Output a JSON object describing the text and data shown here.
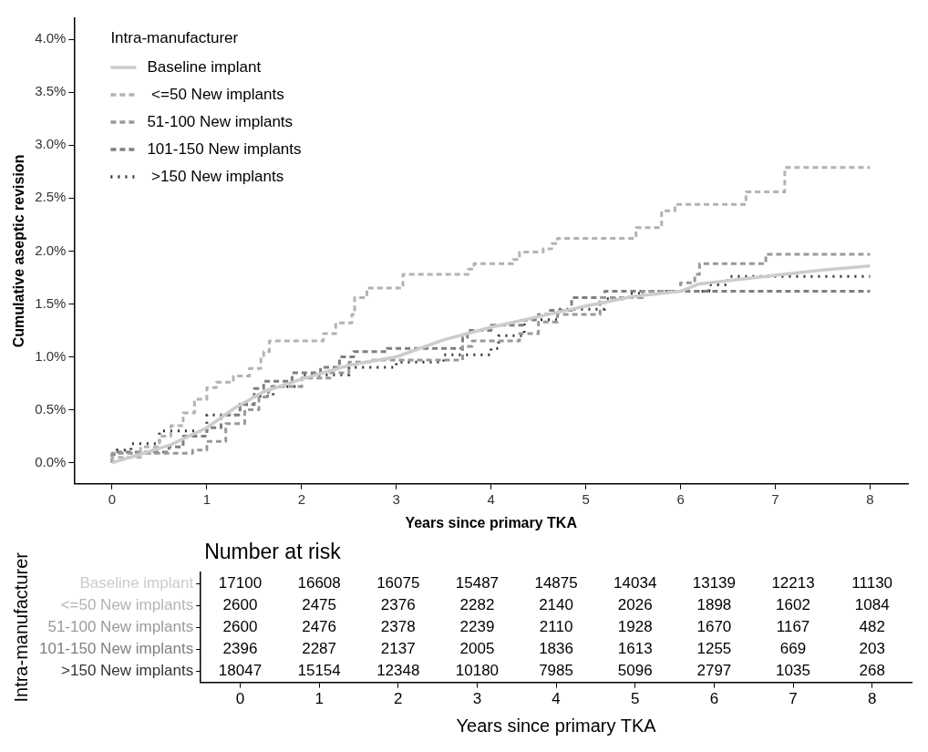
{
  "chart_data": [
    {
      "type": "step",
      "xlabel": "Years since primary TKA",
      "ylabel": "Cumulative aseptic revision",
      "legend_title": "Intra-manufacturer",
      "legend": "top left",
      "grid": false,
      "xlim": [
        -0.4,
        8.4
      ],
      "xticks": [
        0,
        1,
        2,
        3,
        4,
        5,
        6,
        7,
        8
      ],
      "ylim": [
        -0.2,
        4.2
      ],
      "yticks": [
        {
          "value": 0,
          "label": "0.0%"
        },
        {
          "value": 0.5,
          "label": "0.5%"
        },
        {
          "value": 1,
          "label": "1.0%"
        },
        {
          "value": 1.5,
          "label": "1.5%"
        },
        {
          "value": 2,
          "label": "2.0%"
        },
        {
          "value": 2.5,
          "label": "2.5%"
        },
        {
          "value": 3,
          "label": "3.0%"
        },
        {
          "value": 3.5,
          "label": "3.5%"
        },
        {
          "value": 4,
          "label": "4.0%"
        }
      ],
      "series": [
        {
          "name": "Baseline implant",
          "type": "line",
          "color": "#cccccc",
          "line_style": "solid",
          "x": [
            0,
            0.3,
            0.62,
            1,
            1.3,
            1.6,
            2,
            2.5,
            3,
            3.5,
            4,
            4.5,
            5,
            5.5,
            6,
            6.2,
            7,
            7.5,
            8
          ],
          "values": [
            0,
            0.08,
            0.17,
            0.33,
            0.52,
            0.67,
            0.79,
            0.92,
            1.0,
            1.16,
            1.28,
            1.38,
            1.48,
            1.57,
            1.62,
            1.69,
            1.77,
            1.82,
            1.86
          ]
        },
        {
          "name": " <=50 New implants",
          "color": "#b3b3b3",
          "line_style": "dashed",
          "x": [
            0,
            0.3,
            0.5,
            0.62,
            0.75,
            0.87,
            1.0,
            1.1,
            1.28,
            1.45,
            1.57,
            1.6,
            1.66,
            2.23,
            2.36,
            2.53,
            2.56,
            2.69,
            3.07,
            3.76,
            3.82,
            4.23,
            4.3,
            4.55,
            4.64,
            4.7,
            5.53,
            5.8,
            5.94,
            6.69,
            7.1,
            7.54,
            8
          ],
          "values": [
            0,
            0.05,
            0.15,
            0.25,
            0.35,
            0.47,
            0.6,
            0.71,
            0.76,
            0.82,
            0.89,
            1.01,
            1.05,
            1.15,
            1.22,
            1.32,
            1.4,
            1.56,
            1.65,
            1.78,
            1.83,
            1.88,
            1.92,
            1.99,
            2.02,
            2.07,
            2.12,
            2.22,
            2.38,
            2.44,
            2.56,
            2.79,
            2.79
          ]
        },
        {
          "name": "51-100 New implants",
          "color": "#999999",
          "line_style": "dashed",
          "x": [
            0,
            0.85,
            1.0,
            1.2,
            1.4,
            1.55,
            1.65,
            2.0,
            2.3,
            2.5,
            2.75,
            3.7,
            3.8,
            4.3,
            4.5,
            4.7,
            5.15,
            5.6,
            6.0,
            6.15,
            6.2,
            6.9,
            7.3,
            8
          ],
          "values": [
            0,
            0.09,
            0.12,
            0.2,
            0.37,
            0.5,
            0.62,
            0.72,
            0.8,
            0.85,
            0.95,
            0.97,
            1.1,
            1.15,
            1.22,
            1.33,
            1.4,
            1.56,
            1.62,
            1.7,
            1.78,
            1.88,
            1.97,
            1.97
          ]
        },
        {
          "name": "101-150 New implants",
          "color": "#7f7f7f",
          "line_style": "dashed",
          "x": [
            0,
            0.05,
            0.6,
            0.75,
            1.0,
            1.15,
            1.35,
            1.5,
            1.6,
            1.9,
            2.2,
            2.4,
            2.55,
            2.9,
            3.7,
            3.75,
            4.0,
            4.35,
            4.5,
            4.6,
            4.85,
            5.2,
            5.45,
            8
          ],
          "values": [
            0,
            0.08,
            0.1,
            0.15,
            0.25,
            0.33,
            0.45,
            0.55,
            0.7,
            0.77,
            0.85,
            0.9,
            1.0,
            1.05,
            1.08,
            1.18,
            1.25,
            1.3,
            1.35,
            1.4,
            1.44,
            1.56,
            1.62,
            1.62
          ]
        },
        {
          "name": " >150 New implants",
          "color": "#333333",
          "line_style": "dotted",
          "x": [
            0,
            0.05,
            0.2,
            0.5,
            1.0,
            1.3,
            1.5,
            1.7,
            2.0,
            2.5,
            3.0,
            3.5,
            4.0,
            4.08,
            4.35,
            4.7,
            5.2,
            5.45,
            5.6,
            6.3,
            6.5,
            7.0,
            8
          ],
          "values": [
            0,
            0.08,
            0.12,
            0.18,
            0.3,
            0.45,
            0.55,
            0.63,
            0.72,
            0.83,
            0.9,
            0.95,
            1.02,
            1.08,
            1.2,
            1.35,
            1.45,
            1.55,
            1.6,
            1.62,
            1.68,
            1.76,
            1.76
          ]
        }
      ]
    },
    {
      "type": "heatmap",
      "title": "Number at risk",
      "data_labels": true,
      "xlabel": "Years since primary TKA",
      "ylabel": "Intra-manufacturer",
      "categories": [
        "0",
        "1",
        "2",
        "3",
        "4",
        "5",
        "6",
        "7",
        "8"
      ],
      "y_categories": [
        "Baseline implant",
        "<=50 New implants",
        "51-100 New implants",
        "101-150 New implants",
        ">150 New implants"
      ],
      "cells": [
        [
          17100,
          16608,
          16075,
          15487,
          14875,
          14034,
          13139,
          12213,
          11130
        ],
        [
          2600,
          2475,
          2376,
          2282,
          2140,
          2026,
          1898,
          1602,
          1084
        ],
        [
          2600,
          2476,
          2378,
          2239,
          2110,
          1928,
          1670,
          1167,
          482
        ],
        [
          2396,
          2287,
          2137,
          2005,
          1836,
          1613,
          1255,
          669,
          203
        ],
        [
          18047,
          15154,
          12348,
          10180,
          7985,
          5096,
          2797,
          1035,
          268
        ]
      ]
    }
  ]
}
